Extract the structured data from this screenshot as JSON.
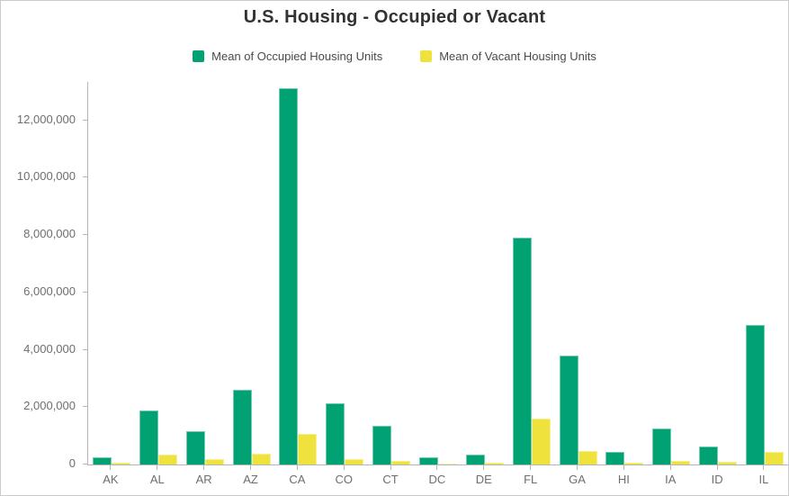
{
  "title": "U.S. Housing - Occupied or Vacant",
  "legend": {
    "items": [
      {
        "label": "Mean of Occupied Housing Units",
        "color": "#00a274"
      },
      {
        "label": "Mean of Vacant Housing Units",
        "color": "#efe23c"
      }
    ]
  },
  "chart_data": {
    "type": "bar",
    "title": "U.S. Housing - Occupied or Vacant",
    "categories": [
      "AK",
      "AL",
      "AR",
      "AZ",
      "CA",
      "CO",
      "CT",
      "DC",
      "DE",
      "FL",
      "GA",
      "HI",
      "IA",
      "ID",
      "IL"
    ],
    "series": [
      {
        "name": "Mean of Occupied Housing Units",
        "color": "#00a274",
        "values": [
          240000,
          1870000,
          1160000,
          2620000,
          13130000,
          2130000,
          1360000,
          250000,
          340000,
          7920000,
          3800000,
          430000,
          1240000,
          630000,
          4870000
        ]
      },
      {
        "name": "Mean of Vacant Housing Units",
        "color": "#efe23c",
        "values": [
          60000,
          360000,
          200000,
          380000,
          1080000,
          195000,
          120000,
          30000,
          70000,
          1600000,
          470000,
          65000,
          115000,
          85000,
          450000
        ]
      }
    ],
    "xlabel": "",
    "ylabel": "",
    "ylim": [
      0,
      13340000
    ],
    "yticks": [
      0,
      2000000,
      4000000,
      6000000,
      8000000,
      10000000,
      12000000
    ],
    "ytick_labels": [
      "0",
      "2,000,000",
      "4,000,000",
      "6,000,000",
      "8,000,000",
      "10,000,000",
      "12,000,000"
    ],
    "grid": false,
    "legend_position": "top"
  },
  "colors": {
    "axis": "#b5b5b5",
    "tick_label": "#6e6e6e",
    "title_text": "#323232",
    "legend_text": "#4a4a4a",
    "background": "#ffffff",
    "frame_border": "#cbcbcb"
  }
}
